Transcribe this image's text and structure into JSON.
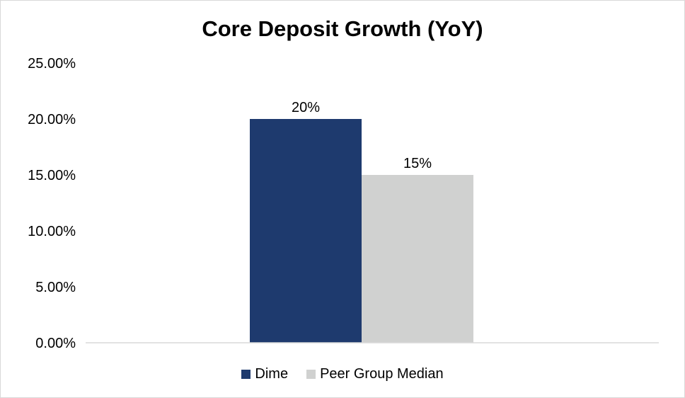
{
  "chart_data": {
    "type": "bar",
    "title": "Core Deposit Growth (YoY)",
    "xlabel": "",
    "ylabel": "",
    "categories": [
      ""
    ],
    "series": [
      {
        "name": "Dime",
        "values": [
          0.2
        ],
        "data_label": "20%",
        "color": "#1e3a6e"
      },
      {
        "name": "Peer Group Median",
        "values": [
          0.15
        ],
        "data_label": "15%",
        "color": "#d0d1d0"
      }
    ],
    "ylim": [
      0,
      0.25
    ],
    "yticks": [
      0,
      0.05,
      0.1,
      0.15,
      0.2,
      0.25
    ],
    "ytick_labels": [
      "0.00%",
      "5.00%",
      "10.00%",
      "15.00%",
      "20.00%",
      "25.00%"
    ],
    "grid": false,
    "legend_position": "bottom"
  }
}
